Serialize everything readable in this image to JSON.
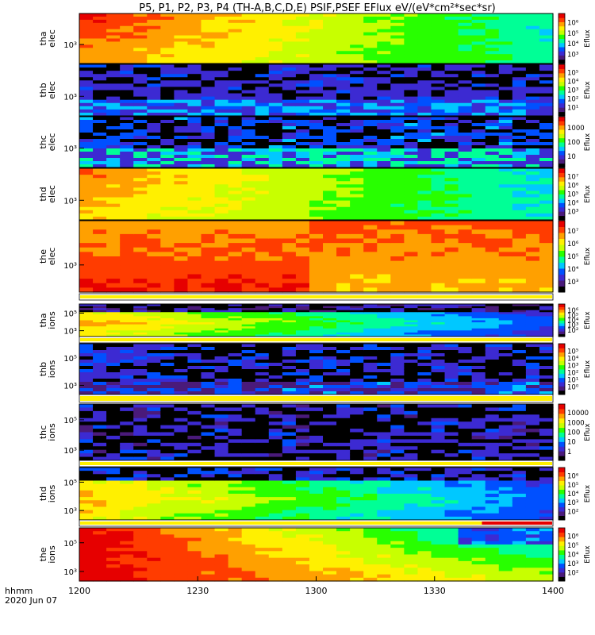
{
  "chart_data": {
    "type": "heatmap",
    "title": "P5, P1, P2, P3, P4 (TH-A,B,C,D,E) PSIF,PSEF EFlux eV/(eV*cm²*sec*sr)",
    "x_axis": {
      "range_hhmm": [
        "1200",
        "1400"
      ],
      "ticks": [
        "1200",
        "1230",
        "1300",
        "1330",
        "1400"
      ],
      "footer_labels": [
        "hhmm",
        "2020 Jun 07"
      ]
    },
    "colorbar_label": "Eflux",
    "panels": [
      {
        "name": "tha_elec",
        "ylabel": [
          "tha",
          "elec"
        ],
        "yticks": [
          "10³"
        ],
        "cb_ticks": [
          "10⁶",
          "10⁵",
          "10⁴",
          "10³"
        ],
        "profile": "elec_a",
        "separator": false
      },
      {
        "name": "thb_elec",
        "ylabel": [
          "thb",
          "elec"
        ],
        "yticks": [
          "10³"
        ],
        "cb_ticks": [
          "10⁵",
          "10⁴",
          "10³",
          "10²",
          "10¹"
        ],
        "profile": "elec_b",
        "separator": false
      },
      {
        "name": "thc_elec",
        "ylabel": [
          "thc",
          "elec"
        ],
        "yticks": [
          "10³"
        ],
        "cb_ticks": [
          "1000",
          "100",
          "10"
        ],
        "profile": "elec_c",
        "separator": false
      },
      {
        "name": "thd_elec",
        "ylabel": [
          "thd",
          "elec"
        ],
        "yticks": [
          "10³"
        ],
        "cb_ticks": [
          "10⁷",
          "10⁶",
          "10⁵",
          "10⁴",
          "10³"
        ],
        "profile": "elec_d",
        "separator": false
      },
      {
        "name": "the_elec",
        "ylabel": [
          "the",
          "elec"
        ],
        "yticks": [
          "10³"
        ],
        "cb_ticks": [
          "10⁷",
          "10⁶",
          "10⁵",
          "10⁴",
          "10³"
        ],
        "profile": "elec_e",
        "separator": true
      },
      {
        "name": "tha_ions",
        "ylabel": [
          "tha",
          "ions"
        ],
        "yticks": [
          "10⁵",
          "10³"
        ],
        "cb_ticks": [
          "10⁶",
          "10⁵",
          "10⁴",
          "10³",
          "10²"
        ],
        "profile": "ions_a",
        "separator": true
      },
      {
        "name": "thb_ions",
        "ylabel": [
          "thb",
          "ions"
        ],
        "yticks": [
          "10⁵",
          "10³"
        ],
        "cb_ticks": [
          "10⁵",
          "10⁴",
          "10³",
          "10²",
          "10¹",
          "10⁰"
        ],
        "profile": "ions_b",
        "separator": true
      },
      {
        "name": "thc_ions",
        "ylabel": [
          "thc",
          "ions"
        ],
        "yticks": [
          "10⁵",
          "10³"
        ],
        "cb_ticks": [
          "10000",
          "1000",
          "100",
          "10",
          "1"
        ],
        "profile": "ions_c",
        "separator": true
      },
      {
        "name": "thd_ions",
        "ylabel": [
          "thd",
          "ions"
        ],
        "yticks": [
          "10⁵",
          "10³"
        ],
        "cb_ticks": [
          "10⁶",
          "10⁵",
          "10⁴",
          "10³",
          "10²"
        ],
        "profile": "ions_d",
        "separator": true
      },
      {
        "name": "the_ions",
        "ylabel": [
          "the",
          "ions"
        ],
        "yticks": [
          "10⁵",
          "10³"
        ],
        "cb_ticks": [
          "10⁶",
          "10⁵",
          "10⁴",
          "10³",
          "10²"
        ],
        "profile": "ions_e",
        "separator": false
      }
    ],
    "colors": {
      "colormap": [
        "#000000",
        "#4a1a7a",
        "#3c2ad2",
        "#0050ff",
        "#00c8ff",
        "#00ff96",
        "#28ff00",
        "#c8ff00",
        "#fff000",
        "#ffa000",
        "#ff3c00",
        "#e60000"
      ],
      "separator_fill": "#fff000",
      "separator_red": "#e60000"
    }
  }
}
